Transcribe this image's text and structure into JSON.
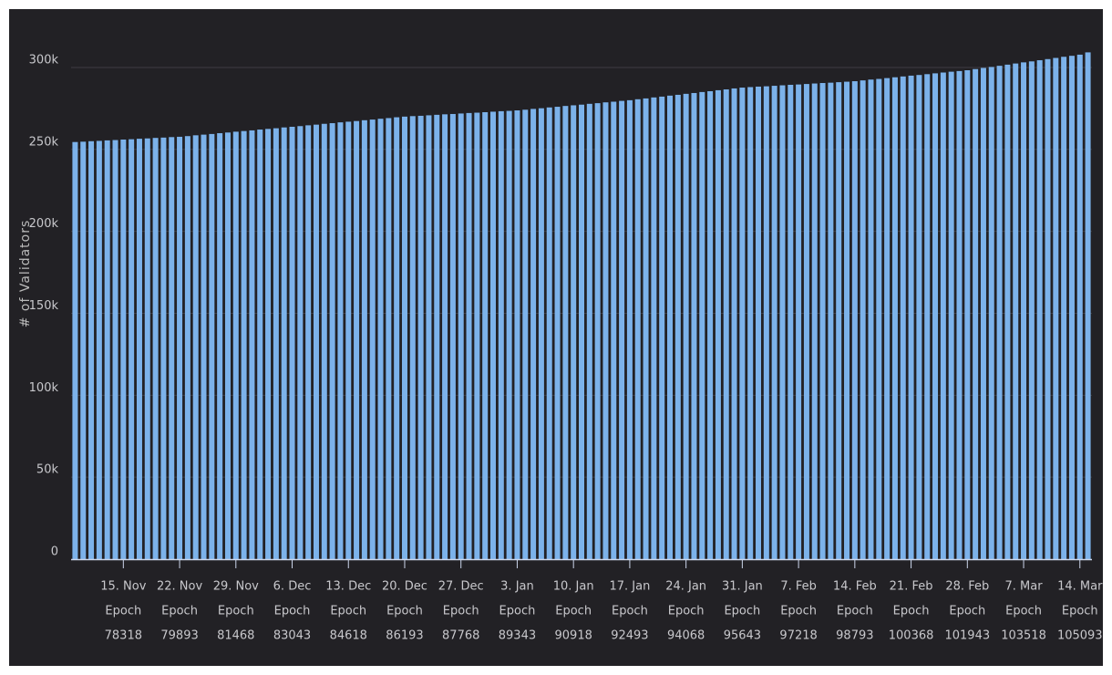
{
  "chart_data": {
    "type": "bar",
    "y_label": "# of Validators",
    "color": "#7cb2ea",
    "grid": true,
    "ylim": [
      0,
      320000
    ],
    "yticks": [
      0,
      {
        "value": 50000,
        "label": "50k"
      },
      {
        "value": 100000,
        "label": "100k"
      },
      {
        "value": 150000,
        "label": "150k"
      },
      {
        "value": 200000,
        "label": "200k"
      },
      {
        "value": 250000,
        "label": "250k"
      },
      {
        "value": 300000,
        "label": "300k"
      }
    ],
    "categories": [
      null,
      null,
      null,
      null,
      null,
      null,
      [
        "15. Nov",
        "Epoch",
        "78318"
      ],
      null,
      null,
      null,
      null,
      null,
      null,
      [
        "22. Nov",
        "Epoch",
        "79893"
      ],
      null,
      null,
      null,
      null,
      null,
      null,
      [
        "29. Nov",
        "Epoch",
        "81468"
      ],
      null,
      null,
      null,
      null,
      null,
      null,
      [
        "6. Dec",
        "Epoch",
        "83043"
      ],
      null,
      null,
      null,
      null,
      null,
      null,
      [
        "13. Dec",
        "Epoch",
        "84618"
      ],
      null,
      null,
      null,
      null,
      null,
      null,
      [
        "20. Dec",
        "Epoch",
        "86193"
      ],
      null,
      null,
      null,
      null,
      null,
      null,
      [
        "27. Dec",
        "Epoch",
        "87768"
      ],
      null,
      null,
      null,
      null,
      null,
      null,
      [
        "3. Jan",
        "Epoch",
        "89343"
      ],
      null,
      null,
      null,
      null,
      null,
      null,
      [
        "10. Jan",
        "Epoch",
        "90918"
      ],
      null,
      null,
      null,
      null,
      null,
      null,
      [
        "17. Jan",
        "Epoch",
        "92493"
      ],
      null,
      null,
      null,
      null,
      null,
      null,
      [
        "24. Jan",
        "Epoch",
        "94068"
      ],
      null,
      null,
      null,
      null,
      null,
      null,
      [
        "31. Jan",
        "Epoch",
        "95643"
      ],
      null,
      null,
      null,
      null,
      null,
      null,
      [
        "7. Feb",
        "Epoch",
        "97218"
      ],
      null,
      null,
      null,
      null,
      null,
      null,
      [
        "14. Feb",
        "Epoch",
        "98793"
      ],
      null,
      null,
      null,
      null,
      null,
      null,
      [
        "21. Feb",
        "Epoch",
        "100368"
      ],
      null,
      null,
      null,
      null,
      null,
      null,
      [
        "28. Feb",
        "Epoch",
        "101943"
      ],
      null,
      null,
      null,
      null,
      null,
      null,
      [
        "7. Mar",
        "Epoch",
        "103518"
      ],
      null,
      null,
      null,
      null,
      null,
      null,
      [
        "14. Mar",
        "Epoch",
        "105093"
      ],
      null
    ],
    "values": [
      254500,
      254700,
      255000,
      255200,
      255500,
      255700,
      256000,
      256200,
      256500,
      256700,
      257000,
      257200,
      257500,
      257700,
      258100,
      258600,
      259000,
      259400,
      259900,
      260300,
      260800,
      261200,
      261600,
      262100,
      262500,
      262900,
      263400,
      263800,
      264200,
      264700,
      265100,
      265600,
      266000,
      266500,
      266900,
      267300,
      267800,
      268200,
      268700,
      269100,
      269600,
      270000,
      270300,
      270500,
      270800,
      271100,
      271400,
      271600,
      271900,
      272200,
      272400,
      272700,
      273000,
      273300,
      273500,
      273800,
      274200,
      274700,
      275100,
      275600,
      276000,
      276500,
      276900,
      277300,
      277800,
      278200,
      278700,
      279100,
      279600,
      280000,
      280600,
      281100,
      281700,
      282200,
      282800,
      283300,
      283900,
      284400,
      285000,
      285500,
      286100,
      286600,
      287200,
      287700,
      288000,
      288300,
      288500,
      288800,
      289100,
      289400,
      289600,
      289900,
      290200,
      290500,
      290700,
      291000,
      291300,
      291600,
      292100,
      292600,
      293000,
      293500,
      294000,
      294500,
      295000,
      295400,
      295900,
      296400,
      296900,
      297400,
      297800,
      298300,
      299000,
      299700,
      300300,
      301000,
      301700,
      302400,
      303100,
      303700,
      304400,
      305100,
      305800,
      306500,
      307100,
      307800,
      309200
    ]
  }
}
